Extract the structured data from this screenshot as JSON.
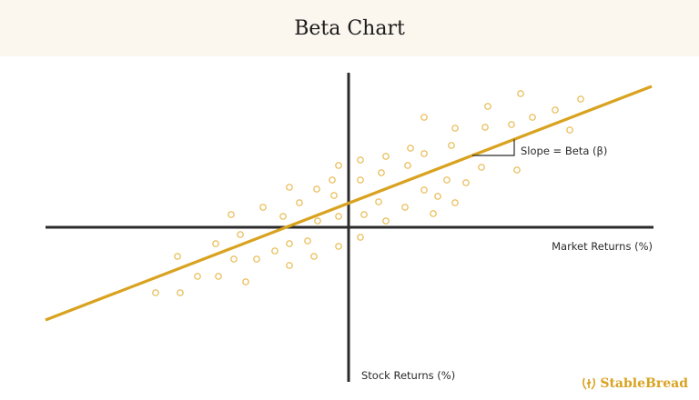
{
  "header": {
    "title": "Beta Chart"
  },
  "brand": {
    "logo_text": "StableBread"
  },
  "colors": {
    "axis": "#2b2b2b",
    "fit_line": "#d9a21f",
    "points": "#e7b84a",
    "header_bg": "#fbf6ee"
  },
  "chart_data": {
    "type": "scatter",
    "title": "Beta Chart",
    "xlabel": "Market Returns (%)",
    "ylabel": "Stock Returns (%)",
    "xlim": [
      -33.3,
      33.5
    ],
    "ylim": [
      -17,
      17
    ],
    "grid": false,
    "axes_cross_at_origin": true,
    "annotation": "Slope = Beta (β)",
    "fit_line": {
      "x": [
        -33.3,
        33.3
      ],
      "y": [
        -10.2,
        15.5
      ]
    },
    "points": [
      [
        -1.1,
        6.8
      ],
      [
        -1.8,
        5.2
      ],
      [
        -6.5,
        4.4
      ],
      [
        -3.5,
        4.2
      ],
      [
        -1.6,
        3.5
      ],
      [
        -5.4,
        2.7
      ],
      [
        -9.4,
        2.2
      ],
      [
        -12.9,
        1.4
      ],
      [
        -7.2,
        1.2
      ],
      [
        -1.1,
        1.2
      ],
      [
        -3.4,
        0.7
      ],
      [
        -11.9,
        -0.8
      ],
      [
        -14.6,
        -1.8
      ],
      [
        -6.5,
        -1.8
      ],
      [
        -4.5,
        -1.5
      ],
      [
        -1.1,
        -2.1
      ],
      [
        -18.8,
        -3.2
      ],
      [
        -8.1,
        -2.6
      ],
      [
        -12.6,
        -3.5
      ],
      [
        -10.1,
        -3.5
      ],
      [
        -3.8,
        -3.2
      ],
      [
        -6.5,
        -4.2
      ],
      [
        -16.6,
        -5.4
      ],
      [
        -14.3,
        -5.4
      ],
      [
        -11.3,
        -6.0
      ],
      [
        -21.2,
        -7.2
      ],
      [
        -18.5,
        -7.2
      ],
      [
        18.9,
        14.7
      ],
      [
        15.3,
        13.3
      ],
      [
        25.5,
        14.1
      ],
      [
        22.7,
        12.9
      ],
      [
        20.2,
        12.1
      ],
      [
        8.3,
        12.1
      ],
      [
        11.7,
        10.9
      ],
      [
        15.0,
        11.0
      ],
      [
        17.9,
        11.3
      ],
      [
        24.3,
        10.7
      ],
      [
        6.8,
        8.7
      ],
      [
        11.3,
        9.0
      ],
      [
        4.1,
        7.8
      ],
      [
        8.3,
        8.1
      ],
      [
        1.3,
        7.4
      ],
      [
        6.5,
        6.8
      ],
      [
        3.6,
        6.0
      ],
      [
        1.3,
        5.2
      ],
      [
        10.8,
        5.2
      ],
      [
        12.9,
        4.9
      ],
      [
        14.6,
        6.6
      ],
      [
        18.5,
        6.3
      ],
      [
        8.3,
        4.1
      ],
      [
        9.8,
        3.4
      ],
      [
        3.3,
        2.8
      ],
      [
        11.7,
        2.7
      ],
      [
        6.2,
        2.2
      ],
      [
        1.7,
        1.4
      ],
      [
        4.1,
        0.7
      ],
      [
        9.3,
        1.5
      ],
      [
        1.3,
        -1.1
      ]
    ]
  }
}
